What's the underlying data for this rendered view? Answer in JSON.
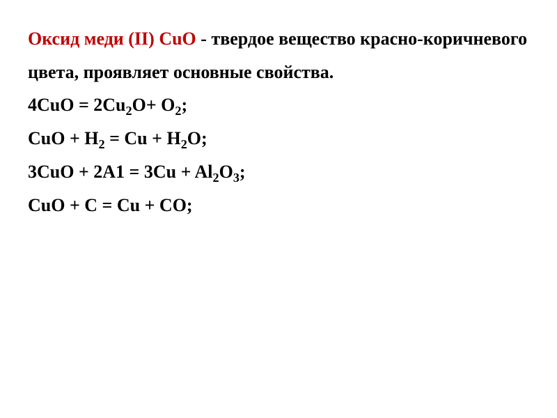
{
  "colors": {
    "title_accent": "#c00000",
    "body_text": "#000000",
    "background": "#ffffff"
  },
  "typography": {
    "font_family": "Times New Roman",
    "body_fontsize_pt": 20,
    "body_fontweight": "bold",
    "line_height": 1.85
  },
  "heading": {
    "accent_text": "Оксид меди (II) СuО",
    "rest_line": " - твердое вещество красно-коричневого цвета, проявляет основные свойства."
  },
  "equations": [
    {
      "parts": [
        {
          "t": "4CuO = 2Cu"
        },
        {
          "t": "2",
          "sub": true
        },
        {
          "t": "O+ O"
        },
        {
          "t": "2",
          "sub": true
        },
        {
          "t": ";"
        }
      ]
    },
    {
      "parts": [
        {
          "t": "CuO + H"
        },
        {
          "t": "2",
          "sub": true
        },
        {
          "t": " = Cu + H"
        },
        {
          "t": "2",
          "sub": true
        },
        {
          "t": "O;"
        }
      ]
    },
    {
      "parts": [
        {
          "t": "3CuO + 2A1 = 3Cu + Al"
        },
        {
          "t": "2",
          "sub": true
        },
        {
          "t": "O"
        },
        {
          "t": "3",
          "sub": true
        },
        {
          "t": ";"
        }
      ]
    },
    {
      "parts": [
        {
          "t": "CuO + C = Cu + CO;"
        }
      ]
    }
  ]
}
